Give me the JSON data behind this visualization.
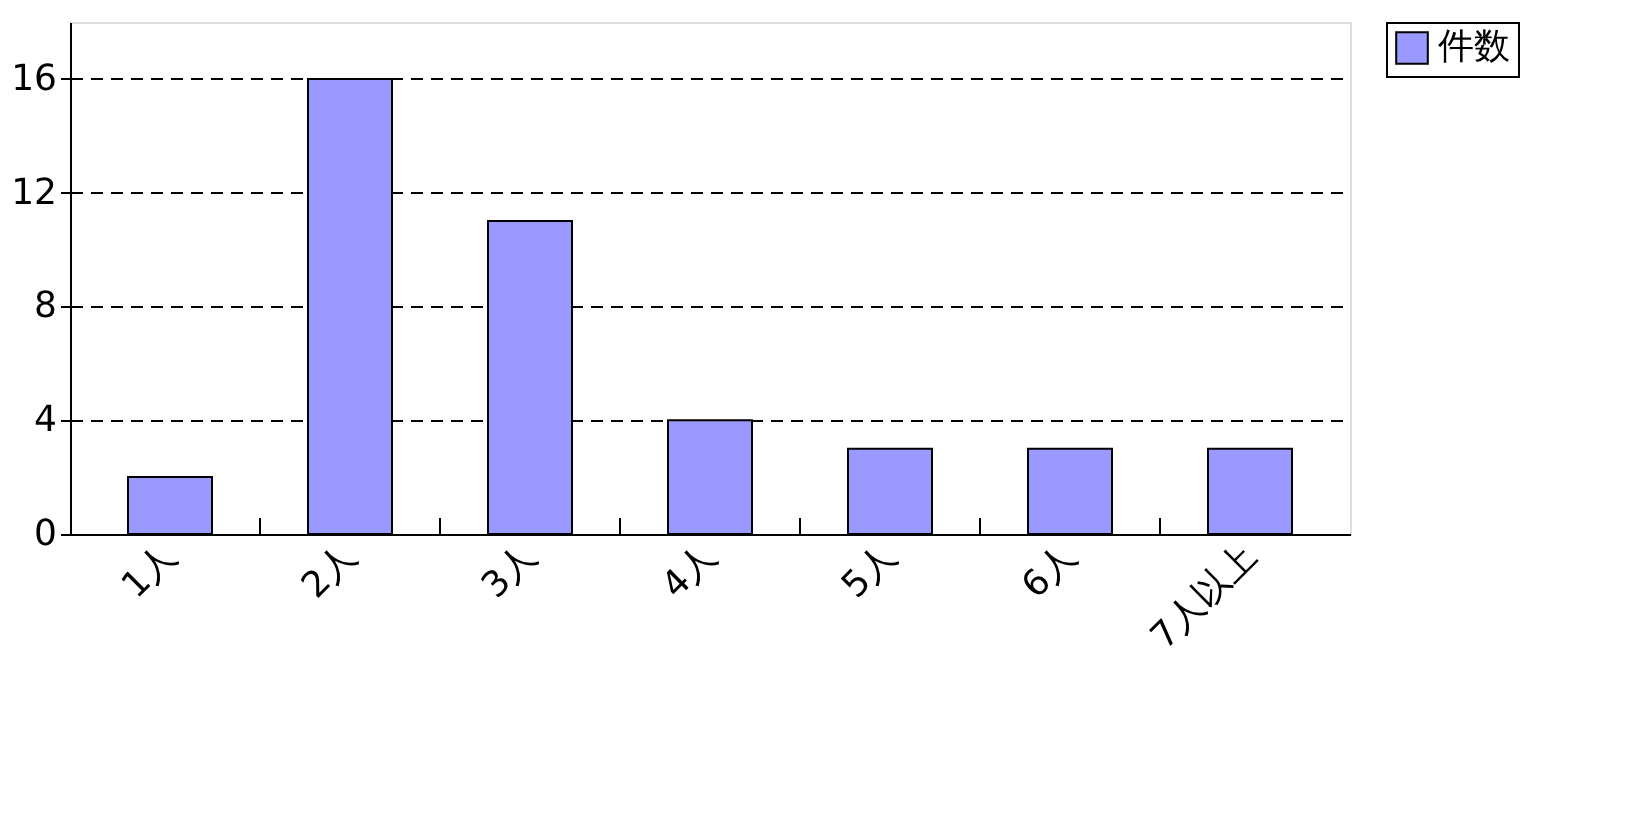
{
  "chart_data": {
    "type": "bar",
    "categories": [
      "1人",
      "2人",
      "3人",
      "4人",
      "5人",
      "6人",
      "7人以上"
    ],
    "series": [
      {
        "name": "件数",
        "color": "#9999ff",
        "values": [
          2,
          16,
          11,
          4,
          3,
          3,
          3
        ]
      }
    ],
    "ylim": [
      0,
      18
    ],
    "yticks": [
      0,
      4,
      8,
      12,
      16
    ],
    "grid": "y",
    "legend": "right"
  }
}
